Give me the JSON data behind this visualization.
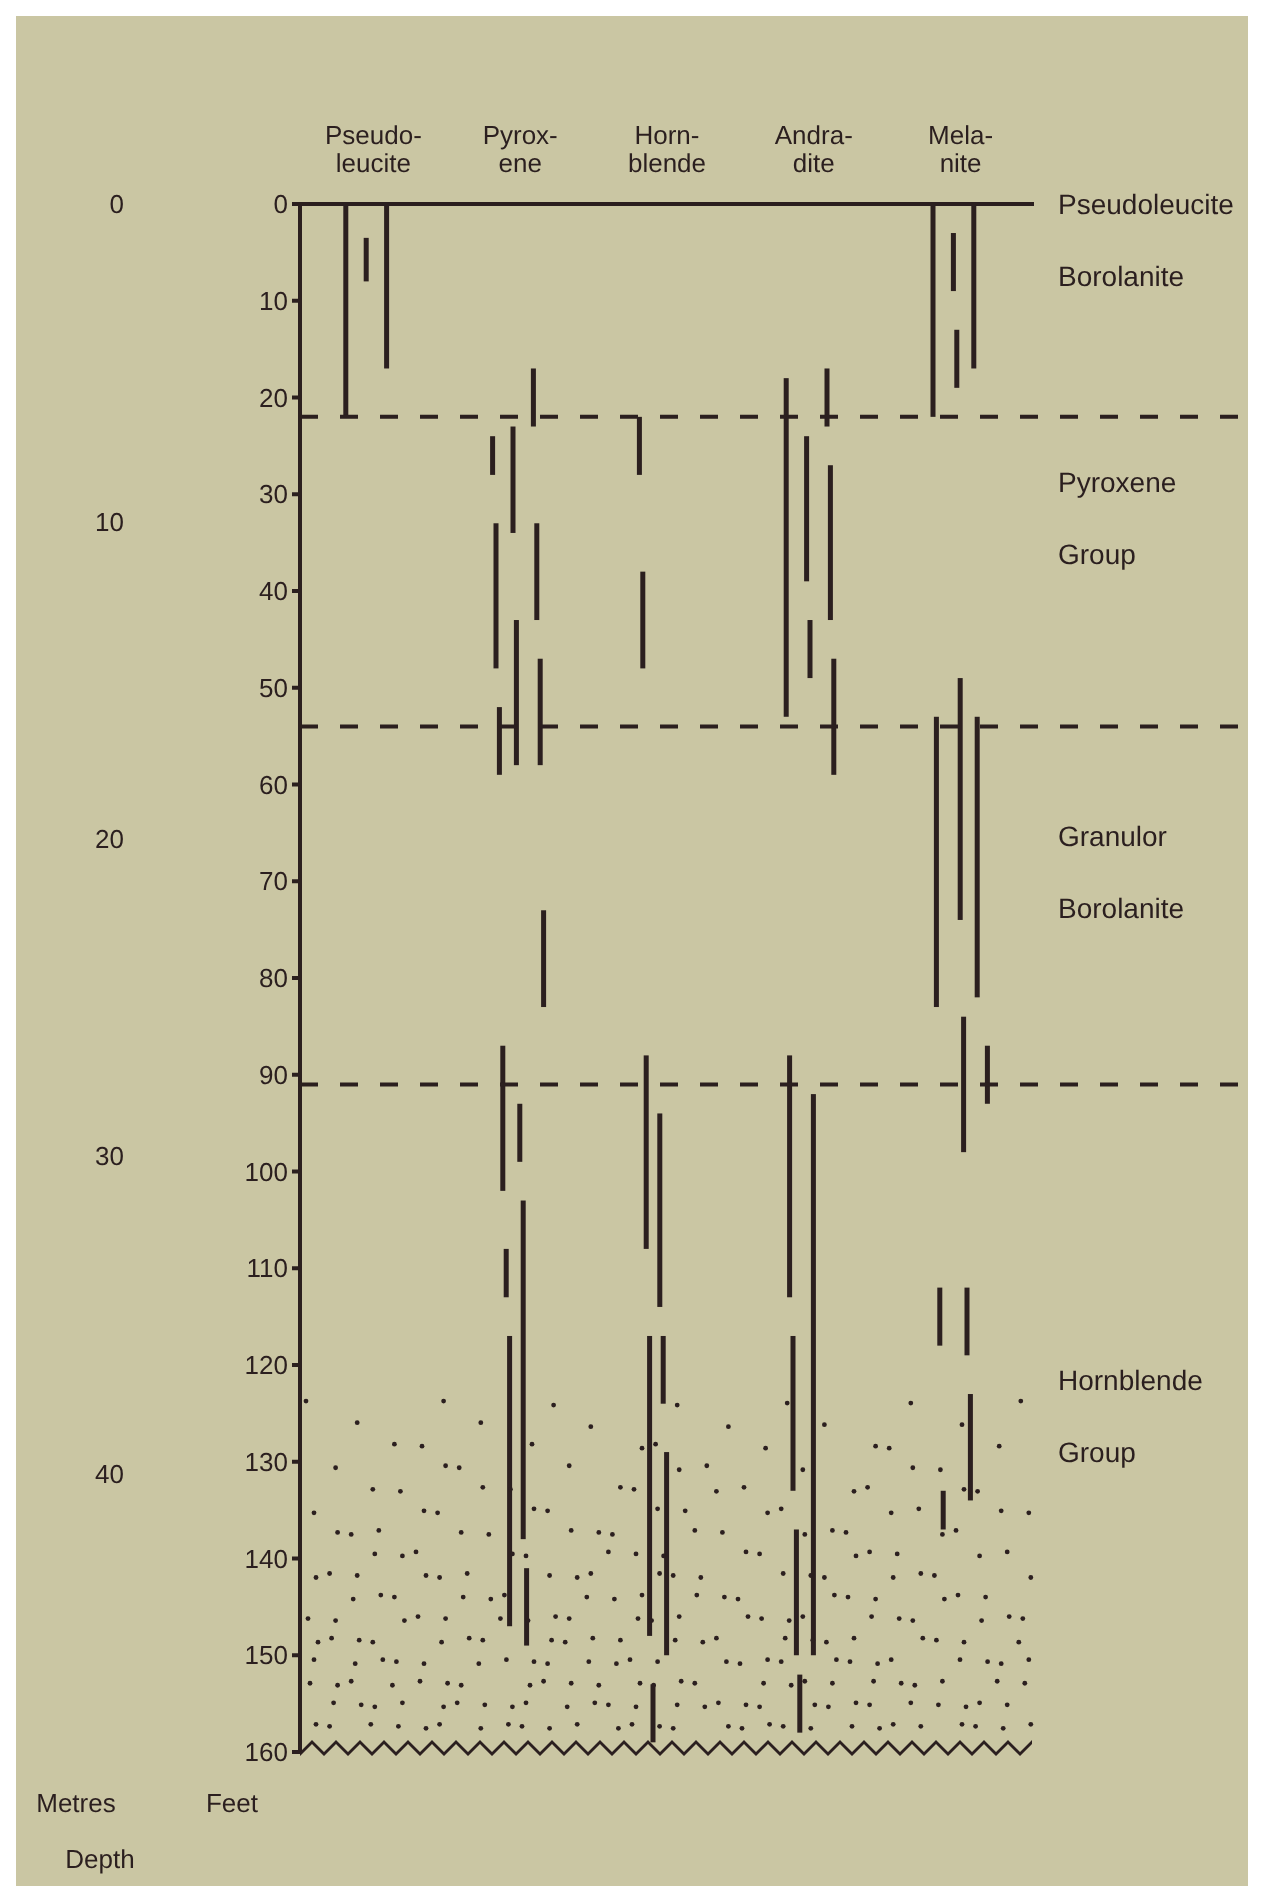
{
  "chart_data": {
    "type": "bar",
    "categories": [
      "Pseudo-leucite",
      "Pyrox-ene",
      "Horn-blende",
      "Andra-dite",
      "Mela-nite"
    ],
    "series": [
      {
        "color": "#2b1f1f",
        "base": [
          0,
          24,
          22,
          18,
          0
        ],
        "values": [
          22,
          4,
          6,
          35,
          22
        ]
      },
      {
        "color": "#2b1f1f",
        "base": [
          null,
          33,
          38,
          88,
          53
        ],
        "values": [
          null,
          15,
          10,
          25,
          30
        ]
      },
      {
        "color": "#2b1f1f",
        "base": [
          null,
          52,
          88,
          117,
          112
        ],
        "values": [
          null,
          7,
          20,
          16,
          6
        ]
      },
      {
        "color": "#2b1f1f",
        "base": [
          null,
          87,
          117,
          137,
          133
        ],
        "values": [
          null,
          15,
          31,
          13,
          4
        ]
      },
      {
        "color": "#2b1f1f",
        "base": [
          null,
          108,
          153,
          152,
          null
        ],
        "values": [
          null,
          5,
          6,
          6,
          null
        ]
      },
      {
        "color": "#2b1f1f",
        "base": [
          null,
          117,
          null,
          null,
          null
        ],
        "values": [
          null,
          30,
          null,
          null,
          null
        ]
      },
      {
        "color": "#2b1f1f",
        "base": [
          3.5,
          23,
          94,
          24,
          3
        ],
        "values": [
          4.5,
          11,
          20,
          15,
          6
        ]
      },
      {
        "color": "#2b1f1f",
        "base": [
          null,
          43,
          117,
          43,
          13
        ],
        "values": [
          null,
          15,
          7,
          6,
          6
        ]
      },
      {
        "color": "#2b1f1f",
        "base": [
          null,
          93,
          129,
          92,
          49
        ],
        "values": [
          null,
          6,
          21,
          58,
          25
        ]
      },
      {
        "color": "#2b1f1f",
        "base": [
          null,
          103,
          null,
          null,
          84
        ],
        "values": [
          null,
          35,
          null,
          null,
          14
        ]
      },
      {
        "color": "#2b1f1f",
        "base": [
          null,
          141,
          null,
          null,
          112
        ],
        "values": [
          null,
          8,
          null,
          null,
          7
        ]
      },
      {
        "color": "#2b1f1f",
        "base": [
          null,
          null,
          null,
          null,
          123
        ],
        "values": [
          null,
          null,
          null,
          null,
          11
        ]
      },
      {
        "color": "#2b1f1f",
        "base": [
          0,
          17,
          null,
          17,
          0
        ],
        "values": [
          17,
          6,
          null,
          6,
          17
        ]
      },
      {
        "color": "#2b1f1f",
        "base": [
          null,
          33,
          null,
          27,
          53
        ],
        "values": [
          null,
          10,
          null,
          16,
          29
        ]
      },
      {
        "color": "#2b1f1f",
        "base": [
          null,
          47,
          null,
          47,
          null
        ],
        "values": [
          null,
          11,
          null,
          12,
          null
        ]
      },
      {
        "color": "#2b1f1f",
        "base": [
          null,
          73,
          null,
          null,
          null
        ],
        "values": [
          null,
          10,
          null,
          null,
          null
        ]
      },
      {
        "color": "#2b1f1f",
        "base": [
          null,
          null,
          null,
          null,
          87
        ],
        "values": [
          null,
          null,
          null,
          null,
          6
        ]
      }
    ],
    "ylim": [
      160,
      0
    ],
    "yticks": [
      0,
      10,
      20,
      30,
      40,
      50,
      60,
      70,
      80,
      90,
      100,
      110,
      120,
      130,
      140,
      150,
      160
    ],
    "y2lim": [
      48.77,
      0
    ],
    "y2ticks": [
      0,
      10,
      20,
      30,
      40
    ],
    "ylabel": "Feet",
    "y2label": "Metres",
    "ref_lines": [
      {
        "axis": "y",
        "value": 22,
        "line_style": "dashed"
      },
      {
        "axis": "y",
        "value": 54,
        "line_style": "dashed"
      },
      {
        "axis": "y",
        "value": 91,
        "line_style": "dashed"
      }
    ],
    "annotations": [
      "Pseudoleucite Borolanite",
      "Pyroxene Group",
      "Granulor Borolanite",
      "Hornblende Group",
      "Depth"
    ]
  }
}
